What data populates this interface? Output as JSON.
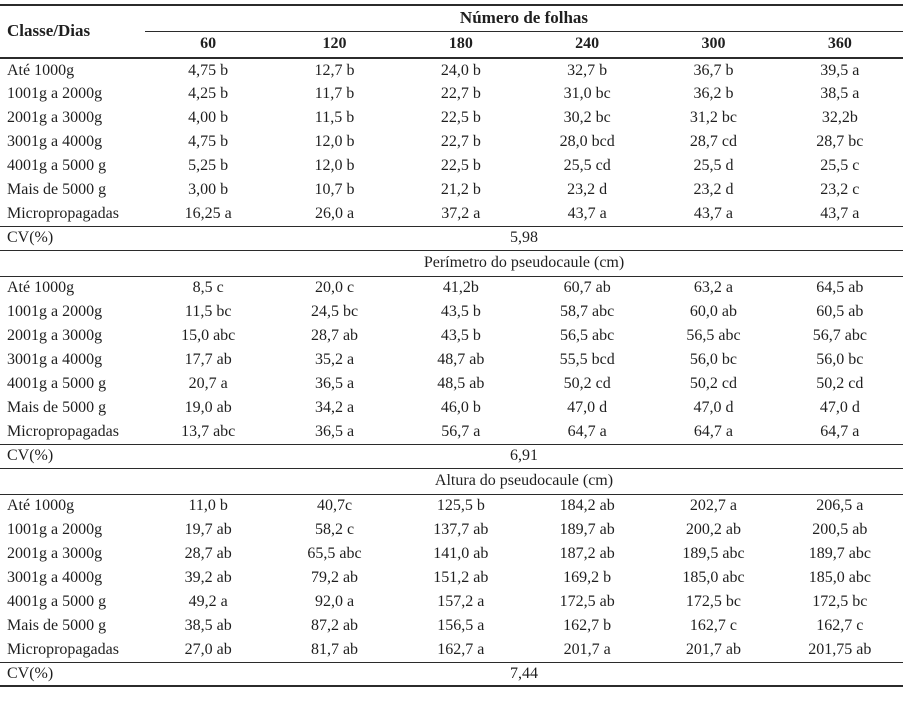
{
  "table": {
    "corner_label": "Classe/Dias",
    "group_header": "Número de folhas",
    "columns": [
      "60",
      "120",
      "180",
      "240",
      "300",
      "360"
    ],
    "sections": [
      {
        "title": null,
        "rows": [
          {
            "label": "Até 1000g",
            "values": [
              "4,75 b",
              "12,7 b",
              "24,0 b",
              "32,7 b",
              "36,7 b",
              "39,5 a"
            ]
          },
          {
            "label": "1001g a 2000g",
            "values": [
              "4,25 b",
              "11,7 b",
              "22,7 b",
              "31,0 bc",
              "36,2 b",
              "38,5 a"
            ]
          },
          {
            "label": "2001g a 3000g",
            "values": [
              "4,00 b",
              "11,5 b",
              "22,5 b",
              "30,2 bc",
              "31,2 bc",
              "32,2b"
            ]
          },
          {
            "label": "3001g a 4000g",
            "values": [
              "4,75 b",
              "12,0 b",
              "22,7 b",
              "28,0 bcd",
              "28,7 cd",
              "28,7 bc"
            ]
          },
          {
            "label": "4001g a 5000 g",
            "values": [
              "5,25 b",
              "12,0 b",
              "22,5 b",
              "25,5 cd",
              "25,5 d",
              "25,5 c"
            ]
          },
          {
            "label": "Mais de 5000 g",
            "values": [
              "3,00 b",
              "10,7 b",
              "21,2 b",
              "23,2 d",
              "23,2 d",
              "23,2 c"
            ]
          },
          {
            "label": "Micropropagadas",
            "values": [
              "16,25 a",
              "26,0 a",
              "37,2 a",
              "43,7 a",
              "43,7 a",
              "43,7 a"
            ]
          }
        ],
        "cv_label": "CV(%)",
        "cv_value": "5,98"
      },
      {
        "title": "Perímetro do pseudocaule (cm)",
        "rows": [
          {
            "label": "Até 1000g",
            "values": [
              "8,5 c",
              "20,0 c",
              "41,2b",
              "60,7 ab",
              "63,2 a",
              "64,5 ab"
            ]
          },
          {
            "label": "1001g a 2000g",
            "values": [
              "11,5 bc",
              "24,5 bc",
              "43,5 b",
              "58,7 abc",
              "60,0 ab",
              "60,5 ab"
            ]
          },
          {
            "label": "2001g a 3000g",
            "values": [
              "15,0 abc",
              "28,7 ab",
              "43,5 b",
              "56,5 abc",
              "56,5 abc",
              "56,7 abc"
            ]
          },
          {
            "label": "3001g a 4000g",
            "values": [
              "17,7 ab",
              "35,2 a",
              "48,7 ab",
              "55,5 bcd",
              "56,0 bc",
              "56,0 bc"
            ]
          },
          {
            "label": "4001g a 5000 g",
            "values": [
              "20,7 a",
              "36,5 a",
              "48,5 ab",
              "50,2 cd",
              "50,2 cd",
              "50,2 cd"
            ]
          },
          {
            "label": "Mais de 5000 g",
            "values": [
              "19,0 ab",
              "34,2 a",
              "46,0 b",
              "47,0 d",
              "47,0 d",
              "47,0 d"
            ]
          },
          {
            "label": "Micropropagadas",
            "values": [
              "13,7 abc",
              "36,5 a",
              "56,7 a",
              "64,7 a",
              "64,7 a",
              "64,7 a"
            ]
          }
        ],
        "cv_label": "CV(%)",
        "cv_value": "6,91"
      },
      {
        "title": "Altura do pseudocaule (cm)",
        "rows": [
          {
            "label": "Até 1000g",
            "values": [
              "11,0 b",
              "40,7c",
              "125,5 b",
              "184,2 ab",
              "202,7 a",
              "206,5 a"
            ]
          },
          {
            "label": "1001g a 2000g",
            "values": [
              "19,7 ab",
              "58,2 c",
              "137,7 ab",
              "189,7 ab",
              "200,2 ab",
              "200,5 ab"
            ]
          },
          {
            "label": "2001g a 3000g",
            "values": [
              "28,7 ab",
              "65,5 abc",
              "141,0 ab",
              "187,2 ab",
              "189,5 abc",
              "189,7 abc"
            ]
          },
          {
            "label": "3001g a 4000g",
            "values": [
              "39,2 ab",
              "79,2 ab",
              "151,2 ab",
              "169,2 b",
              "185,0 abc",
              "185,0 abc"
            ]
          },
          {
            "label": "4001g a 5000 g",
            "values": [
              "49,2 a",
              "92,0 a",
              "157,2 a",
              "172,5 ab",
              "172,5 bc",
              "172,5 bc"
            ]
          },
          {
            "label": "Mais de 5000 g",
            "values": [
              "38,5 ab",
              "87,2 ab",
              "156,5 a",
              "162,7 b",
              "162,7 c",
              "162,7 c"
            ]
          },
          {
            "label": "Micropropagadas",
            "values": [
              "27,0 ab",
              "81,7 ab",
              "162,7 a",
              "201,7 a",
              "201,7 ab",
              "201,75 ab"
            ]
          }
        ],
        "cv_label": "CV(%)",
        "cv_value": "7,44"
      }
    ]
  }
}
